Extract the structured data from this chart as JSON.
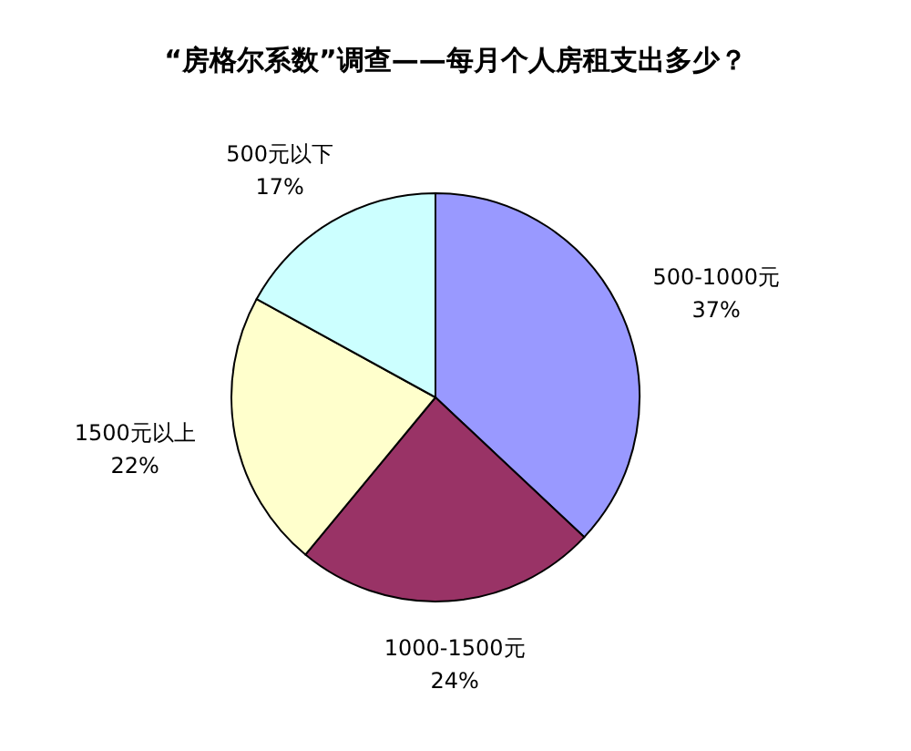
{
  "chart_data": {
    "type": "pie",
    "title": "“房格尔系数”调查——每月个人房租支出多少？",
    "categories": [
      "500-1000元",
      "1000-1500元",
      "1500元以上",
      "500元以下"
    ],
    "values": [
      37,
      24,
      22,
      17
    ],
    "colors": [
      "#9999ff",
      "#993366",
      "#ffffcc",
      "#ccffff"
    ],
    "value_labels": [
      "37%",
      "24%",
      "22%",
      "17%"
    ]
  }
}
